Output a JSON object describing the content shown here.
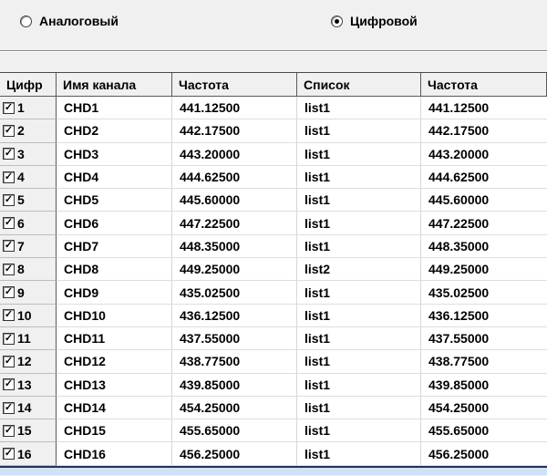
{
  "mode_selector": {
    "analog": {
      "label": "Аналоговый",
      "selected": false
    },
    "digital": {
      "label": "Цифровой",
      "selected": true
    }
  },
  "table": {
    "columns": [
      "Цифр",
      "Имя канала",
      "Частота",
      "Список",
      "Частота"
    ],
    "check_glyph": "✓",
    "rows": [
      {
        "checked": true,
        "num": "1",
        "name": "CHD1",
        "freq": "441.12500",
        "list": "list1",
        "freq2": "441.12500"
      },
      {
        "checked": true,
        "num": "2",
        "name": "CHD2",
        "freq": "442.17500",
        "list": "list1",
        "freq2": "442.17500"
      },
      {
        "checked": true,
        "num": "3",
        "name": "CHD3",
        "freq": "443.20000",
        "list": "list1",
        "freq2": "443.20000"
      },
      {
        "checked": true,
        "num": "4",
        "name": "CHD4",
        "freq": "444.62500",
        "list": "list1",
        "freq2": "444.62500"
      },
      {
        "checked": true,
        "num": "5",
        "name": "CHD5",
        "freq": "445.60000",
        "list": "list1",
        "freq2": "445.60000"
      },
      {
        "checked": true,
        "num": "6",
        "name": "CHD6",
        "freq": "447.22500",
        "list": "list1",
        "freq2": "447.22500"
      },
      {
        "checked": true,
        "num": "7",
        "name": "CHD7",
        "freq": "448.35000",
        "list": "list1",
        "freq2": "448.35000"
      },
      {
        "checked": true,
        "num": "8",
        "name": "CHD8",
        "freq": "449.25000",
        "list": "list2",
        "freq2": "449.25000"
      },
      {
        "checked": true,
        "num": "9",
        "name": "CHD9",
        "freq": "435.02500",
        "list": "list1",
        "freq2": "435.02500"
      },
      {
        "checked": true,
        "num": "10",
        "name": "CHD10",
        "freq": "436.12500",
        "list": "list1",
        "freq2": "436.12500"
      },
      {
        "checked": true,
        "num": "11",
        "name": "CHD11",
        "freq": "437.55000",
        "list": "list1",
        "freq2": "437.55000"
      },
      {
        "checked": true,
        "num": "12",
        "name": "CHD12",
        "freq": "438.77500",
        "list": "list1",
        "freq2": "438.77500"
      },
      {
        "checked": true,
        "num": "13",
        "name": "CHD13",
        "freq": "439.85000",
        "list": "list1",
        "freq2": "439.85000"
      },
      {
        "checked": true,
        "num": "14",
        "name": "CHD14",
        "freq": "454.25000",
        "list": "list1",
        "freq2": "454.25000"
      },
      {
        "checked": true,
        "num": "15",
        "name": "CHD15",
        "freq": "455.65000",
        "list": "list1",
        "freq2": "455.65000"
      },
      {
        "checked": true,
        "num": "16",
        "name": "CHD16",
        "freq": "456.25000",
        "list": "list1",
        "freq2": "456.25000"
      }
    ]
  },
  "colors": {
    "panel_bg": "#f0f0f0",
    "cell_bg": "#ffffff",
    "bottom_line": "#22335c",
    "bottom_strip": "#cfe2f7"
  }
}
